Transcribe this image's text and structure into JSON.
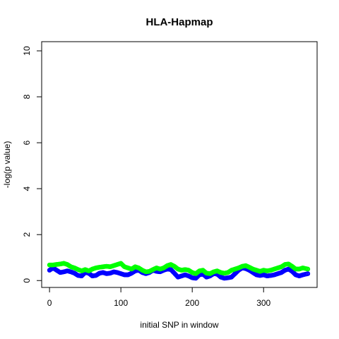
{
  "chart_data": {
    "type": "scatter",
    "title": "HLA-Hapmap",
    "xlabel": "initial SNP in window",
    "ylabel": "-log(p value)",
    "xlim": [
      -11,
      375
    ],
    "ylim": [
      -0.3,
      10.4
    ],
    "xticks": [
      0,
      100,
      200,
      300
    ],
    "yticks": [
      0,
      2,
      4,
      6,
      8,
      10
    ],
    "grid": false,
    "colors": {
      "series_1": "#0000ff",
      "series_2": "#00ff00"
    },
    "series": [
      {
        "color": "#0000ff",
        "x": [
          0,
          5,
          10,
          15,
          20,
          25,
          30,
          35,
          40,
          45,
          50,
          55,
          60,
          65,
          70,
          75,
          80,
          85,
          90,
          95,
          100,
          105,
          110,
          115,
          120,
          125,
          130,
          135,
          140,
          145,
          150,
          155,
          160,
          165,
          170,
          175,
          180,
          185,
          190,
          195,
          200,
          205,
          210,
          215,
          220,
          225,
          230,
          235,
          240,
          245,
          250,
          255,
          260,
          265,
          270,
          275,
          280,
          285,
          290,
          295,
          300,
          305,
          310,
          315,
          320,
          325,
          330,
          335,
          340,
          345,
          350,
          355,
          362
        ],
        "y": [
          0.45,
          0.55,
          0.45,
          0.35,
          0.38,
          0.42,
          0.38,
          0.32,
          0.22,
          0.2,
          0.35,
          0.32,
          0.2,
          0.22,
          0.32,
          0.35,
          0.3,
          0.32,
          0.38,
          0.35,
          0.3,
          0.25,
          0.25,
          0.32,
          0.42,
          0.45,
          0.35,
          0.3,
          0.35,
          0.45,
          0.4,
          0.38,
          0.45,
          0.5,
          0.48,
          0.32,
          0.15,
          0.2,
          0.25,
          0.2,
          0.12,
          0.1,
          0.25,
          0.28,
          0.15,
          0.2,
          0.3,
          0.28,
          0.15,
          0.1,
          0.12,
          0.15,
          0.3,
          0.45,
          0.55,
          0.52,
          0.45,
          0.35,
          0.25,
          0.22,
          0.25,
          0.2,
          0.22,
          0.25,
          0.3,
          0.35,
          0.45,
          0.5,
          0.4,
          0.25,
          0.2,
          0.25,
          0.3
        ]
      },
      {
        "color": "#00ff00",
        "x": [
          0,
          5,
          10,
          15,
          20,
          25,
          30,
          35,
          40,
          45,
          50,
          55,
          60,
          65,
          70,
          75,
          80,
          85,
          90,
          95,
          100,
          105,
          110,
          115,
          120,
          125,
          130,
          135,
          140,
          145,
          150,
          155,
          160,
          165,
          170,
          175,
          180,
          185,
          190,
          195,
          200,
          205,
          210,
          215,
          220,
          225,
          230,
          235,
          240,
          245,
          250,
          255,
          260,
          265,
          270,
          275,
          280,
          285,
          290,
          295,
          300,
          305,
          310,
          315,
          320,
          325,
          330,
          335,
          340,
          345,
          350,
          355,
          362
        ],
        "y": [
          0.68,
          0.68,
          0.7,
          0.72,
          0.75,
          0.7,
          0.6,
          0.55,
          0.48,
          0.42,
          0.48,
          0.42,
          0.5,
          0.55,
          0.58,
          0.6,
          0.62,
          0.6,
          0.65,
          0.7,
          0.75,
          0.6,
          0.55,
          0.5,
          0.6,
          0.55,
          0.45,
          0.38,
          0.4,
          0.48,
          0.55,
          0.5,
          0.55,
          0.65,
          0.7,
          0.62,
          0.5,
          0.45,
          0.48,
          0.45,
          0.35,
          0.3,
          0.42,
          0.45,
          0.32,
          0.3,
          0.38,
          0.42,
          0.35,
          0.32,
          0.35,
          0.45,
          0.5,
          0.55,
          0.62,
          0.65,
          0.58,
          0.5,
          0.45,
          0.4,
          0.45,
          0.42,
          0.45,
          0.5,
          0.55,
          0.6,
          0.7,
          0.72,
          0.62,
          0.5,
          0.5,
          0.55,
          0.5
        ]
      }
    ]
  }
}
